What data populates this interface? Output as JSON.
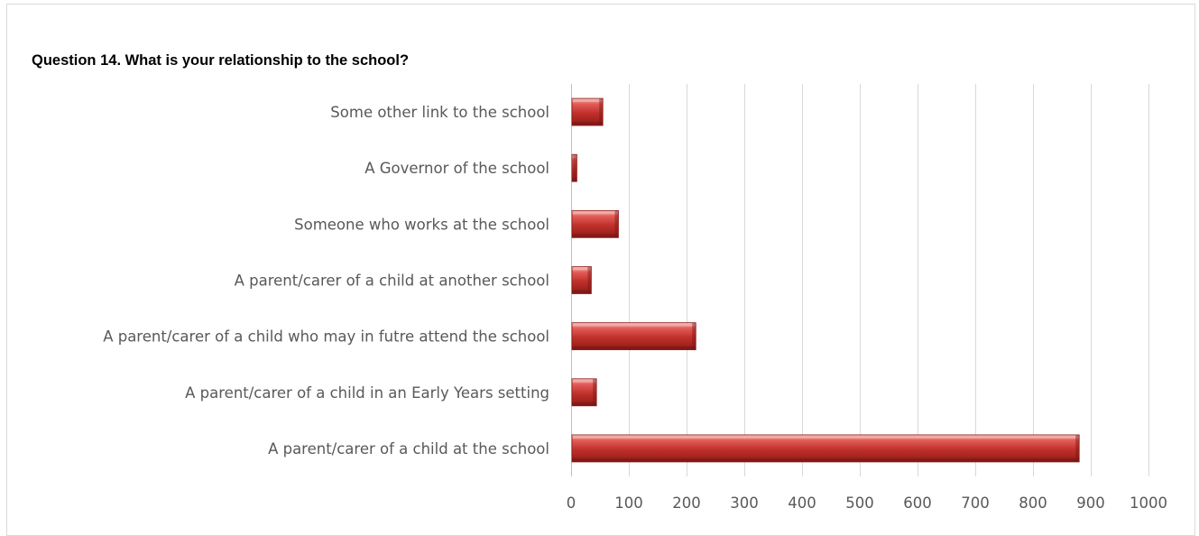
{
  "chart_data": {
    "type": "bar",
    "orientation": "horizontal",
    "title": "Question 14. What is your relationship to the school?",
    "xlabel": "",
    "ylabel": "",
    "xlim": [
      0,
      1000
    ],
    "x_ticks": [
      0,
      100,
      200,
      300,
      400,
      500,
      600,
      700,
      800,
      900,
      1000
    ],
    "categories": [
      "Some other link to the school",
      "A Governor of the school",
      "Someone who works at the school",
      "A parent/carer of a child at another school",
      "A parent/carer of a child who may in futre attend the school",
      "A parent/carer of a child in an Early Years setting",
      "A parent/carer of a child at the school"
    ],
    "values": [
      55,
      10,
      82,
      35,
      216,
      44,
      880
    ],
    "grid": true,
    "legend": "none",
    "bar_color": "#c0392b"
  }
}
